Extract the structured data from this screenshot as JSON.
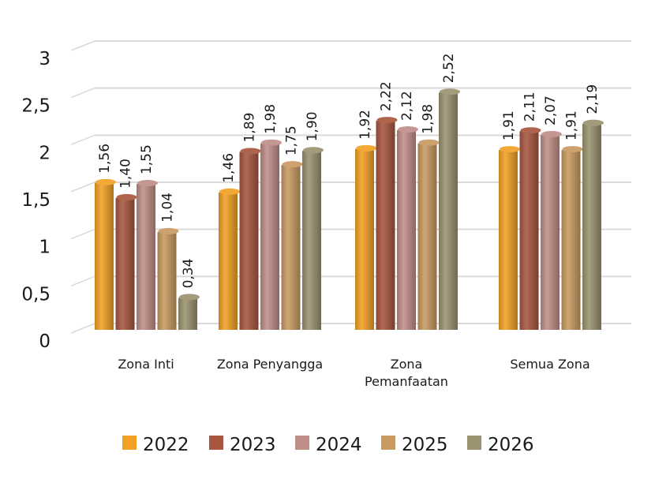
{
  "chart_data": {
    "type": "bar",
    "categories": [
      [
        "Zona Inti"
      ],
      [
        "Zona Penyangga"
      ],
      [
        "Zona",
        "Pemanfaatan"
      ],
      [
        "Semua Zona"
      ]
    ],
    "series": [
      {
        "name": "2022",
        "color": "#F2A124",
        "values": [
          1.56,
          1.46,
          1.92,
          1.91
        ],
        "labels": [
          "1,56",
          "1,46",
          "1,92",
          "1,91"
        ]
      },
      {
        "name": "2023",
        "color": "#A8563F",
        "values": [
          1.4,
          1.89,
          2.22,
          2.11
        ],
        "labels": [
          "1,40",
          "1,89",
          "2,22",
          "2,11"
        ]
      },
      {
        "name": "2024",
        "color": "#C08E88",
        "values": [
          1.55,
          1.98,
          2.12,
          2.07
        ],
        "labels": [
          "1,55",
          "1,98",
          "2,12",
          "2,07"
        ]
      },
      {
        "name": "2025",
        "color": "#C99A62",
        "values": [
          1.04,
          1.75,
          1.98,
          1.91
        ],
        "labels": [
          "1,04",
          "1,75",
          "1,98",
          "1,91"
        ]
      },
      {
        "name": "2026",
        "color": "#9B9270",
        "values": [
          0.34,
          1.9,
          2.52,
          2.19
        ],
        "labels": [
          "0,34",
          "1,90",
          "2,52",
          "2,19"
        ]
      }
    ],
    "ylim": [
      0,
      3
    ],
    "yticks": [
      {
        "value": 0,
        "label": "0"
      },
      {
        "value": 0.5,
        "label": "0,5"
      },
      {
        "value": 1,
        "label": "1"
      },
      {
        "value": 1.5,
        "label": "1,5"
      },
      {
        "value": 2,
        "label": "2"
      },
      {
        "value": 2.5,
        "label": "2,5"
      },
      {
        "value": 3,
        "label": "3"
      }
    ],
    "grid": true,
    "legend": "bottom",
    "title": "",
    "xlabel": "",
    "ylabel": ""
  }
}
